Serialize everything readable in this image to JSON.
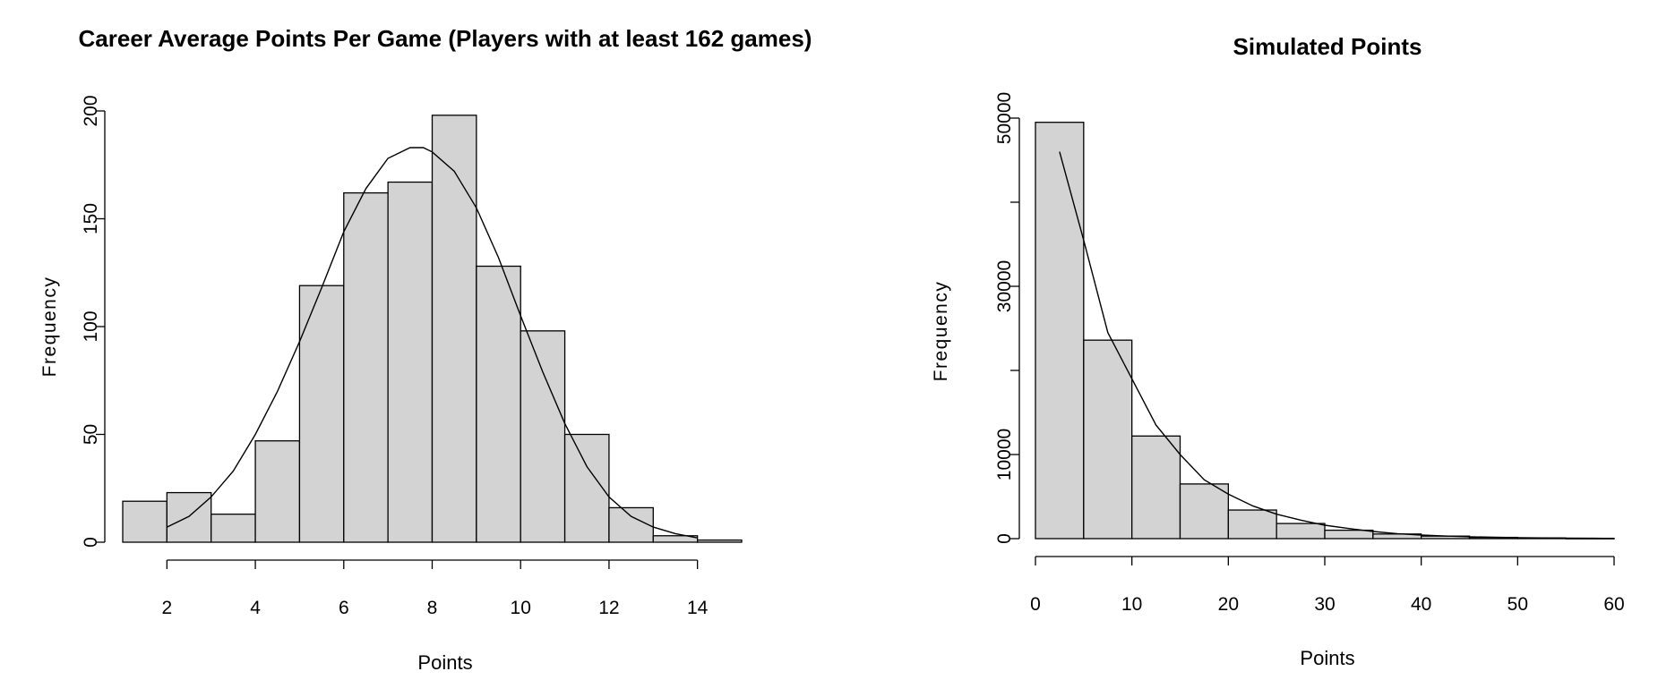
{
  "chart_data": [
    {
      "type": "bar",
      "title": "Career Average Points Per Game (Players with at least 162 games)",
      "xlabel": "Points",
      "ylabel": "Frequency",
      "bins": [
        [
          1,
          2
        ],
        [
          2,
          3
        ],
        [
          3,
          4
        ],
        [
          4,
          5
        ],
        [
          5,
          6
        ],
        [
          6,
          7
        ],
        [
          7,
          8
        ],
        [
          8,
          9
        ],
        [
          9,
          10
        ],
        [
          10,
          11
        ],
        [
          11,
          12
        ],
        [
          12,
          13
        ],
        [
          13,
          14
        ],
        [
          14,
          15
        ]
      ],
      "values": [
        19,
        23,
        13,
        47,
        119,
        162,
        167,
        198,
        128,
        98,
        50,
        16,
        3,
        1
      ],
      "xlim": [
        1,
        15
      ],
      "ylim": [
        0,
        200
      ],
      "xticks": [
        2,
        4,
        6,
        8,
        10,
        12,
        14
      ],
      "xtick_labels": [
        "2",
        "4",
        "6",
        "8",
        "10",
        "12",
        "14"
      ],
      "yticks": [
        0,
        50,
        100,
        150,
        200
      ],
      "ytick_labels": [
        "0",
        "50",
        "100",
        "150",
        "200"
      ],
      "curve": {
        "x": [
          2,
          2.5,
          3,
          3.5,
          4,
          4.5,
          5,
          5.5,
          6,
          6.5,
          7,
          7.5,
          7.8,
          8,
          8.5,
          9,
          9.5,
          10,
          10.5,
          11,
          11.5,
          12,
          12.5,
          13,
          13.5,
          14
        ],
        "y": [
          7,
          12,
          21,
          33,
          50,
          70,
          93,
          118,
          144,
          164,
          178,
          183,
          183,
          181,
          172,
          155,
          132,
          105,
          79,
          55,
          35,
          21,
          12,
          7,
          4,
          2
        ]
      },
      "grid": false
    },
    {
      "type": "bar",
      "title": "Simulated Points",
      "xlabel": "Points",
      "ylabel": "Frequency",
      "bins": [
        [
          0,
          5
        ],
        [
          5,
          10
        ],
        [
          10,
          15
        ],
        [
          15,
          20
        ],
        [
          20,
          25
        ],
        [
          25,
          30
        ],
        [
          30,
          35
        ],
        [
          35,
          40
        ],
        [
          40,
          45
        ],
        [
          45,
          50
        ],
        [
          50,
          55
        ],
        [
          55,
          60
        ]
      ],
      "values": [
        49500,
        23600,
        12200,
        6500,
        3400,
        1800,
        1000,
        550,
        300,
        150,
        80,
        40
      ],
      "xlim": [
        0,
        60
      ],
      "ylim": [
        0,
        50000
      ],
      "xticks": [
        0,
        10,
        20,
        30,
        40,
        50,
        60
      ],
      "xtick_labels": [
        "0",
        "10",
        "20",
        "30",
        "40",
        "50",
        "60"
      ],
      "yticks": [
        0,
        10000,
        20000,
        30000,
        40000,
        50000
      ],
      "ytick_labels": [
        "0",
        "10000",
        "30000",
        "50000"
      ],
      "ytick_label_values": [
        0,
        10000,
        30000,
        50000
      ],
      "curve": {
        "x": [
          2.5,
          5,
          7.5,
          10,
          12.5,
          15,
          17.5,
          20,
          22.5,
          25,
          27.5,
          30,
          32.5,
          35,
          37.5,
          40,
          42.5,
          45,
          47.5,
          50,
          52.5,
          55,
          57.5,
          60
        ],
        "y": [
          46000,
          35500,
          24500,
          19000,
          13500,
          10000,
          7000,
          5300,
          3900,
          2900,
          2200,
          1600,
          1200,
          850,
          600,
          430,
          310,
          220,
          160,
          110,
          80,
          55,
          40,
          25
        ]
      },
      "grid": false
    }
  ]
}
